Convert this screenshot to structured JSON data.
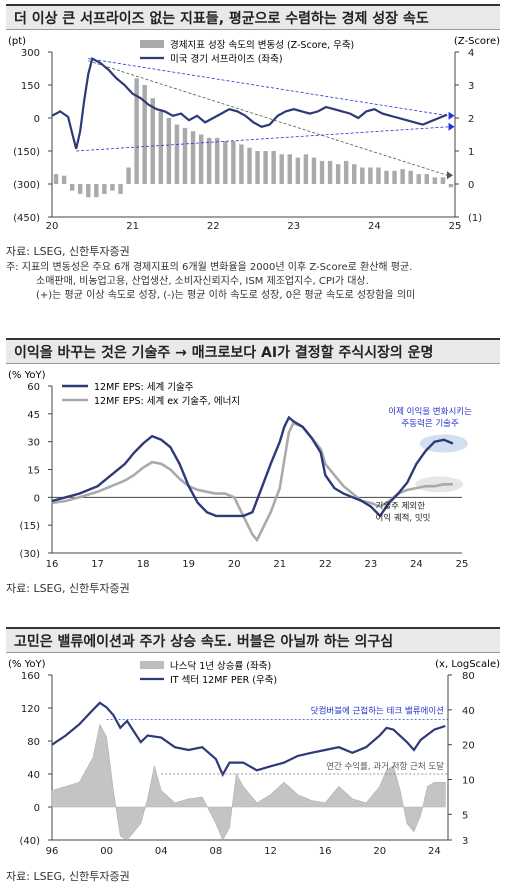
{
  "chart1": {
    "title": "더 이상 큰 서프라이즈 없는 지표들, 평균으로 수렴하는 경제 성장 속도",
    "left_unit": "(pt)",
    "right_unit": "(Z-Score)",
    "legend": [
      "경제지표 성장 속도의 변동성 (Z-Score, 우축)",
      "미국 경기 서프라이즈 (좌축)"
    ],
    "left_ticks": [
      "300",
      "150",
      "0",
      "(150)",
      "(300)",
      "(450)"
    ],
    "right_ticks": [
      "4",
      "3",
      "2",
      "1",
      "0",
      "(1)"
    ],
    "x_ticks": [
      "20",
      "21",
      "22",
      "23",
      "24",
      "25"
    ],
    "source": "자료: LSEG, 신한투자증권",
    "notes": [
      "주: 지표의 변동성은 주요 6개 경제지표의 6개월 변화율을 2000년 이후 Z-Score로 환산해 평균.",
      "소매판매, 비농업고용, 산업생산, 소비자신뢰지수, ISM 제조업지수, CPI가 대상.",
      "(+)는 평균 이상 속도로 성장, (-)는 평균 이하 속도로 성장, 0은 평균 속도로 성장함을 의미"
    ]
  },
  "chart2": {
    "title": "이익을 바꾸는 것은 기술주 → 매크로보다 AI가 결정할 주식시장의 운명",
    "unit": "(% YoY)",
    "legend": [
      "12MF EPS: 세계 기술주",
      "12MF EPS: 세계 ex 기술주, 에너지"
    ],
    "y_ticks": [
      "60",
      "45",
      "30",
      "15",
      "0",
      "(15)",
      "(30)"
    ],
    "x_ticks": [
      "16",
      "17",
      "18",
      "19",
      "20",
      "21",
      "22",
      "23",
      "24",
      "25"
    ],
    "annotation1": [
      "이제 이익을 변화시키는",
      "주동력은 기술주"
    ],
    "annotation2": [
      "기술주 제외한",
      "이익 궤적, 밋밋"
    ],
    "source": "자료: LSEG, 신한투자증권"
  },
  "chart3": {
    "title": "고민은 밸류에이션과 주가 상승 속도. 버블은 아닐까 하는 의구심",
    "left_unit": "(% YoY)",
    "right_unit": "(x, LogScale)",
    "legend": [
      "나스닥 1년 상승률 (좌축)",
      "IT 섹터 12MF PER (우축)"
    ],
    "left_ticks": [
      "160",
      "120",
      "80",
      "40",
      "0",
      "(40)"
    ],
    "right_ticks": [
      "80",
      "40",
      "20",
      "10",
      "5",
      "3"
    ],
    "x_ticks": [
      "96",
      "00",
      "04",
      "08",
      "12",
      "16",
      "20",
      "24"
    ],
    "annotation1": "닷컴버블에 근접하는 테크 밸류에이션",
    "annotation2": "연간 수익률, 과거 저항 근처 도달",
    "source": "자료: LSEG, 신한투자증권"
  },
  "colors": {
    "navy": "#2e3a78",
    "gray": "#aaaaaa",
    "blue_dash": "#2233dd",
    "title_bg": "#e9e9e9"
  },
  "chart_data": [
    {
      "type": "line",
      "title": "더 이상 큰 서프라이즈 없는 지표들, 평균으로 수렴하는 경제 성장 속도",
      "x_range": [
        2020,
        2025
      ],
      "series": [
        {
          "name": "경제지표 성장 속도의 변동성 (Z-Score, 우축)",
          "kind": "bar",
          "axis": "right",
          "x": [
            2020.0,
            2020.1,
            2020.2,
            2020.3,
            2020.4,
            2020.5,
            2020.6,
            2020.7,
            2020.8,
            2020.9,
            2021.0,
            2021.1,
            2021.2,
            2021.3,
            2021.4,
            2021.5,
            2021.6,
            2021.7,
            2021.8,
            2021.9,
            2022.0,
            2022.1,
            2022.2,
            2022.3,
            2022.4,
            2022.5,
            2022.6,
            2022.7,
            2022.8,
            2022.9,
            2023.0,
            2023.1,
            2023.2,
            2023.3,
            2023.4,
            2023.5,
            2023.6,
            2023.7,
            2023.8,
            2023.9,
            2024.0,
            2024.1,
            2024.2,
            2024.3,
            2024.4,
            2024.5,
            2024.6,
            2024.7,
            2024.8,
            2024.9
          ],
          "values": [
            0.3,
            0.25,
            -0.2,
            -0.3,
            -0.4,
            -0.4,
            -0.3,
            -0.2,
            -0.3,
            0.5,
            3.2,
            3.0,
            2.6,
            2.2,
            2.0,
            1.8,
            1.7,
            1.6,
            1.5,
            1.4,
            1.4,
            1.3,
            1.3,
            1.2,
            1.1,
            1.0,
            1.0,
            1.0,
            0.9,
            0.9,
            0.8,
            0.9,
            0.8,
            0.7,
            0.7,
            0.6,
            0.7,
            0.6,
            0.5,
            0.5,
            0.5,
            0.4,
            0.4,
            0.45,
            0.4,
            0.3,
            0.3,
            0.2,
            0.2,
            -0.1
          ]
        },
        {
          "name": "미국 경기 서프라이즈 (좌축)",
          "kind": "line",
          "axis": "left",
          "x": [
            2020.0,
            2020.1,
            2020.2,
            2020.25,
            2020.3,
            2020.35,
            2020.4,
            2020.45,
            2020.5,
            2020.6,
            2020.7,
            2020.8,
            2020.9,
            2021.0,
            2021.1,
            2021.2,
            2021.3,
            2021.4,
            2021.5,
            2021.6,
            2021.7,
            2021.8,
            2021.9,
            2022.0,
            2022.1,
            2022.2,
            2022.3,
            2022.4,
            2022.5,
            2022.6,
            2022.7,
            2022.8,
            2022.9,
            2023.0,
            2023.1,
            2023.2,
            2023.3,
            2023.4,
            2023.5,
            2023.6,
            2023.7,
            2023.8,
            2023.9,
            2024.0,
            2024.1,
            2024.2,
            2024.3,
            2024.4,
            2024.5,
            2024.6,
            2024.7,
            2024.8,
            2024.9
          ],
          "values": [
            10,
            30,
            5,
            -70,
            -140,
            -60,
            80,
            200,
            270,
            250,
            220,
            180,
            150,
            110,
            90,
            60,
            40,
            30,
            10,
            20,
            -10,
            10,
            -20,
            0,
            20,
            40,
            30,
            10,
            -20,
            -40,
            -30,
            10,
            30,
            40,
            30,
            20,
            30,
            50,
            40,
            30,
            20,
            0,
            30,
            40,
            20,
            10,
            0,
            -10,
            -20,
            -30,
            -15,
            0,
            15
          ]
        }
      ]
    },
    {
      "type": "line",
      "title": "이익을 바꾸는 것은 기술주 → 매크로보다 AI가 결정할 주식시장의 운명",
      "x_range": [
        2016,
        2025
      ],
      "ylim": [
        -30,
        60
      ],
      "series": [
        {
          "name": "12MF EPS: 세계 기술주",
          "x": [
            2016.0,
            2016.3,
            2016.6,
            2017.0,
            2017.3,
            2017.6,
            2017.8,
            2018.0,
            2018.2,
            2018.4,
            2018.6,
            2018.8,
            2019.0,
            2019.2,
            2019.4,
            2019.6,
            2019.8,
            2020.0,
            2020.2,
            2020.4,
            2020.6,
            2020.8,
            2021.0,
            2021.1,
            2021.2,
            2021.3,
            2021.5,
            2021.7,
            2021.9,
            2022.0,
            2022.2,
            2022.4,
            2022.6,
            2022.8,
            2023.0,
            2023.2,
            2023.4,
            2023.6,
            2023.8,
            2024.0,
            2024.2,
            2024.4,
            2024.6,
            2024.8
          ],
          "values": [
            -2,
            0,
            2,
            6,
            12,
            18,
            24,
            29,
            33,
            31,
            27,
            18,
            6,
            -3,
            -8,
            -10,
            -10,
            -10,
            -10,
            -8,
            5,
            18,
            30,
            38,
            43,
            41,
            38,
            32,
            24,
            12,
            5,
            2,
            0,
            -2,
            -5,
            -10,
            -3,
            2,
            8,
            18,
            25,
            30,
            31,
            29
          ]
        },
        {
          "name": "12MF EPS: 세계 ex 기술주, 에너지",
          "x": [
            2016.0,
            2016.3,
            2016.6,
            2017.0,
            2017.3,
            2017.6,
            2017.8,
            2018.0,
            2018.2,
            2018.4,
            2018.6,
            2018.8,
            2019.0,
            2019.2,
            2019.4,
            2019.6,
            2019.8,
            2020.0,
            2020.2,
            2020.4,
            2020.5,
            2020.6,
            2020.8,
            2021.0,
            2021.1,
            2021.2,
            2021.3,
            2021.5,
            2021.7,
            2021.9,
            2022.0,
            2022.2,
            2022.4,
            2022.6,
            2022.8,
            2023.0,
            2023.2,
            2023.4,
            2023.6,
            2023.8,
            2024.0,
            2024.2,
            2024.4,
            2024.6,
            2024.8
          ],
          "values": [
            -3,
            -2,
            0,
            3,
            6,
            9,
            12,
            16,
            19,
            18,
            15,
            10,
            6,
            4,
            3,
            2,
            2,
            0,
            -10,
            -20,
            -23,
            -18,
            -8,
            5,
            20,
            35,
            40,
            38,
            32,
            26,
            18,
            12,
            6,
            2,
            -2,
            -3,
            -5,
            -2,
            2,
            4,
            5,
            6,
            6,
            7,
            7
          ]
        }
      ],
      "annotations": [
        "이제 이익을 변화시키는 주동력은 기술주",
        "기술주 제외한 이익 궤적, 밋밋"
      ]
    },
    {
      "type": "line",
      "title": "고민은 밸류에이션과 주가 상승 속도. 버블은 아닐까 하는 의구심",
      "x_range": [
        1996,
        2025
      ],
      "series": [
        {
          "name": "나스닥 1년 상승률 (좌축)",
          "kind": "area",
          "axis": "left",
          "x": [
            1996,
            1997,
            1998,
            1999,
            1999.5,
            2000,
            2000.5,
            2001,
            2001.5,
            2002,
            2002.5,
            2003,
            2003.5,
            2004,
            2005,
            2006,
            2007,
            2008,
            2008.5,
            2009,
            2009.5,
            2010,
            2011,
            2012,
            2013,
            2014,
            2015,
            2016,
            2017,
            2018,
            2019,
            2020,
            2020.5,
            2021,
            2021.5,
            2022,
            2022.5,
            2023,
            2023.5,
            2024,
            2024.8
          ],
          "values": [
            20,
            25,
            30,
            60,
            100,
            85,
            20,
            -35,
            -40,
            -30,
            -20,
            10,
            50,
            20,
            5,
            10,
            12,
            -20,
            -40,
            -25,
            40,
            25,
            5,
            15,
            30,
            15,
            8,
            5,
            25,
            10,
            5,
            25,
            45,
            50,
            20,
            -20,
            -30,
            -10,
            25,
            30,
            30
          ]
        },
        {
          "name": "IT 섹터 12MF PER (우축)",
          "kind": "line",
          "axis": "right",
          "log": true,
          "x": [
            1996,
            1997,
            1998,
            1999,
            1999.5,
            2000,
            2000.5,
            2001,
            2001.5,
            2002,
            2002.5,
            2003,
            2004,
            2005,
            2006,
            2007,
            2008,
            2008.5,
            2009,
            2010,
            2011,
            2012,
            2013,
            2014,
            2015,
            2016,
            2017,
            2018,
            2019,
            2020,
            2020.5,
            2021,
            2022,
            2022.5,
            2023,
            2024,
            2024.8
          ],
          "values": [
            20,
            24,
            30,
            40,
            46,
            42,
            36,
            28,
            32,
            26,
            21,
            24,
            23,
            19,
            18,
            19,
            15,
            11,
            14,
            14,
            12,
            13,
            14,
            16,
            17,
            18,
            19,
            17,
            19,
            24,
            28,
            27,
            21,
            18,
            22,
            27,
            29
          ]
        }
      ],
      "annotations": [
        "닷컴버블에 근접하는 테크 밸류에이션",
        "연간 수익률, 과거 저항 근처 도달"
      ]
    }
  ]
}
